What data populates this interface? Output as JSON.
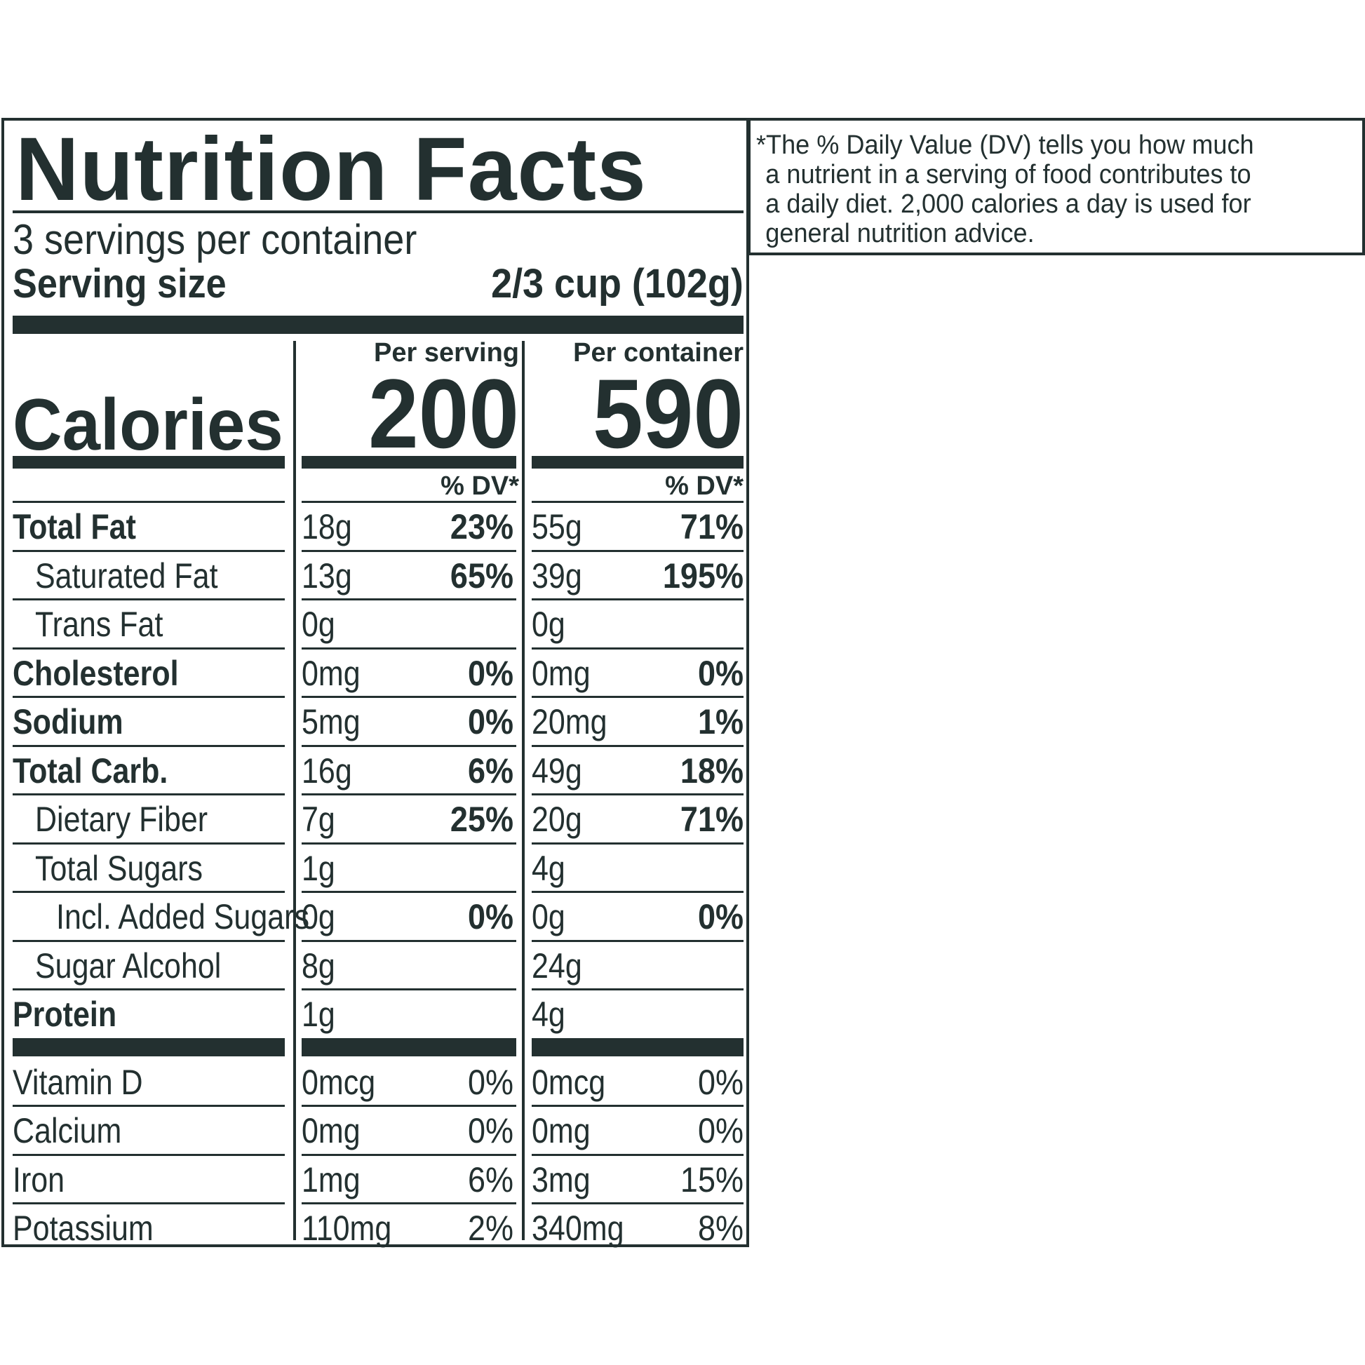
{
  "title": "Nutrition Facts",
  "servings_per_container": "3 servings per container",
  "serving_size_label": "Serving size",
  "serving_size_value": "2/3 cup (102g)",
  "per_serving_label": "Per serving",
  "per_container_label": "Per container",
  "calories_label": "Calories",
  "calories_per_serving": "200",
  "calories_per_container": "590",
  "dv_header": "% DV*",
  "nutrients": [
    {
      "name": "Total Fat",
      "serving_amount": "18g",
      "serving_dv": "23%",
      "container_amount": "55g",
      "container_dv": "71%"
    },
    {
      "name": "Saturated Fat",
      "serving_amount": "13g",
      "serving_dv": "65%",
      "container_amount": "39g",
      "container_dv": "195%"
    },
    {
      "name": "Trans Fat",
      "serving_amount": "0g",
      "serving_dv": "",
      "container_amount": "0g",
      "container_dv": ""
    },
    {
      "name": "Cholesterol",
      "serving_amount": "0mg",
      "serving_dv": "0%",
      "container_amount": "0mg",
      "container_dv": "0%"
    },
    {
      "name": "Sodium",
      "serving_amount": "5mg",
      "serving_dv": "0%",
      "container_amount": "20mg",
      "container_dv": "1%"
    },
    {
      "name": "Total Carb.",
      "serving_amount": "16g",
      "serving_dv": "6%",
      "container_amount": "49g",
      "container_dv": "18%"
    },
    {
      "name": "Dietary Fiber",
      "serving_amount": "7g",
      "serving_dv": "25%",
      "container_amount": "20g",
      "container_dv": "71%"
    },
    {
      "name": "Total Sugars",
      "serving_amount": "1g",
      "serving_dv": "",
      "container_amount": "4g",
      "container_dv": ""
    },
    {
      "name": "Incl. Added Sugars",
      "serving_amount": "0g",
      "serving_dv": "0%",
      "container_amount": "0g",
      "container_dv": "0%"
    },
    {
      "name": "Sugar Alcohol",
      "serving_amount": "8g",
      "serving_dv": "",
      "container_amount": "24g",
      "container_dv": ""
    },
    {
      "name": "Protein",
      "serving_amount": "1g",
      "serving_dv": "",
      "container_amount": "4g",
      "container_dv": ""
    }
  ],
  "vitamins": [
    {
      "name": "Vitamin D",
      "serving_amount": "0mcg",
      "serving_dv": "0%",
      "container_amount": "0mcg",
      "container_dv": "0%"
    },
    {
      "name": "Calcium",
      "serving_amount": "0mg",
      "serving_dv": "0%",
      "container_amount": "0mg",
      "container_dv": "0%"
    },
    {
      "name": "Iron",
      "serving_amount": "1mg",
      "serving_dv": "6%",
      "container_amount": "3mg",
      "container_dv": "15%"
    },
    {
      "name": "Potassium",
      "serving_amount": "110mg",
      "serving_dv": "2%",
      "container_amount": "340mg",
      "container_dv": "8%"
    }
  ],
  "footnote_lines": [
    "*The % Daily Value (DV) tells you how much",
    "a nutrient in a serving of food contributes to",
    "a daily diet. 2,000 calories a day is used for",
    "general nutrition advice."
  ]
}
